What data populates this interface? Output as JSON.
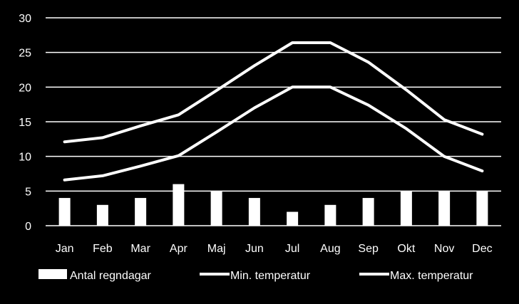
{
  "chart_data": {
    "type": "bar",
    "categories": [
      "Jan",
      "Feb",
      "Mar",
      "Apr",
      "Maj",
      "Jun",
      "Jul",
      "Aug",
      "Sep",
      "Okt",
      "Nov",
      "Dec"
    ],
    "ylim": [
      0,
      30
    ],
    "yticks": [
      "0",
      "5",
      "10",
      "15",
      "20",
      "25",
      "30"
    ],
    "grid": true,
    "legend_position": "bottom",
    "series": [
      {
        "name": "Antal regndagar",
        "type": "bar",
        "values": [
          4,
          3,
          4,
          6,
          5,
          4,
          2,
          3,
          4,
          5,
          5,
          5
        ]
      },
      {
        "name": "Min. temperatur",
        "type": "line",
        "values": [
          6.6,
          7.2,
          8.6,
          10.1,
          13.5,
          17.0,
          20.0,
          20.0,
          17.4,
          14.0,
          10.0,
          7.9
        ]
      },
      {
        "name": "Max. temperatur",
        "type": "line",
        "values": [
          12.1,
          12.7,
          14.4,
          16.0,
          19.5,
          23.1,
          26.4,
          26.4,
          23.6,
          19.6,
          15.3,
          13.2
        ]
      }
    ],
    "colors": {
      "background": "#000000",
      "foreground": "#ffffff"
    }
  }
}
